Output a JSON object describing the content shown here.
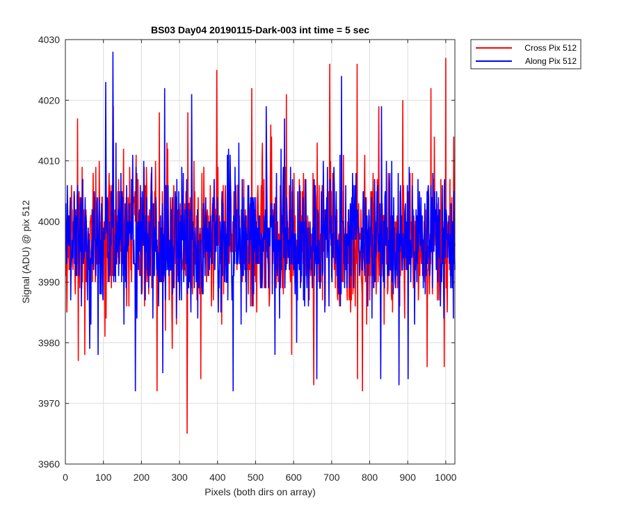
{
  "chart_data": {
    "type": "line",
    "title": "BS03 Day04 20190115-Dark-003 int time = 5 sec",
    "xlabel": "Pixels (both dirs on array)",
    "ylabel": "Signal (ADU) @ pix 512",
    "xlim": [
      0,
      1024
    ],
    "ylim": [
      3960,
      4030
    ],
    "xticks": [
      0,
      100,
      200,
      300,
      400,
      500,
      600,
      700,
      800,
      900,
      1000
    ],
    "yticks": [
      3960,
      3970,
      3980,
      3990,
      4000,
      4010,
      4020,
      4030
    ],
    "grid": true,
    "legend_position": "outside-top-right",
    "series": [
      {
        "name": "Cross Pix 512",
        "color": "#ff0000",
        "n_points": 1024,
        "mean": 3997,
        "noise_std": 5.5,
        "seed": 11,
        "peaks": [
          [
            31,
            4017
          ],
          [
            125,
            4019
          ],
          [
            246,
            4018
          ],
          [
            321,
            4018
          ],
          [
            397,
            4025
          ],
          [
            489,
            4022
          ],
          [
            580,
            4021
          ],
          [
            694,
            4026
          ],
          [
            766,
            4026
          ],
          [
            823,
            4019
          ],
          [
            886,
            4020
          ],
          [
            960,
            4022
          ],
          [
            999,
            4027
          ],
          [
            1020,
            4014
          ]
        ],
        "troughs": [
          [
            33,
            3977
          ],
          [
            50,
            3978
          ],
          [
            240,
            3972
          ],
          [
            280,
            3979
          ],
          [
            319,
            3965
          ],
          [
            355,
            3974
          ],
          [
            652,
            3973
          ],
          [
            767,
            3974
          ],
          [
            780,
            3972
          ],
          [
            950,
            3976
          ],
          [
            995,
            3976
          ]
        ]
      },
      {
        "name": "Along Pix 512",
        "color": "#0000ff",
        "n_points": 1024,
        "mean": 3997,
        "noise_std": 5.5,
        "seed": 29,
        "peaks": [
          [
            105,
            4023
          ],
          [
            124,
            4028
          ],
          [
            260,
            4022
          ],
          [
            331,
            4021
          ],
          [
            527,
            4019
          ],
          [
            725,
            4024
          ],
          [
            830,
            4019
          ],
          [
            575,
            4017
          ]
        ],
        "troughs": [
          [
            85,
            3978
          ],
          [
            183,
            3972
          ],
          [
            255,
            3975
          ],
          [
            440,
            3972
          ],
          [
            550,
            3978
          ],
          [
            660,
            3974
          ],
          [
            828,
            3974
          ],
          [
            876,
            3973
          ],
          [
            900,
            3974
          ]
        ]
      }
    ]
  }
}
